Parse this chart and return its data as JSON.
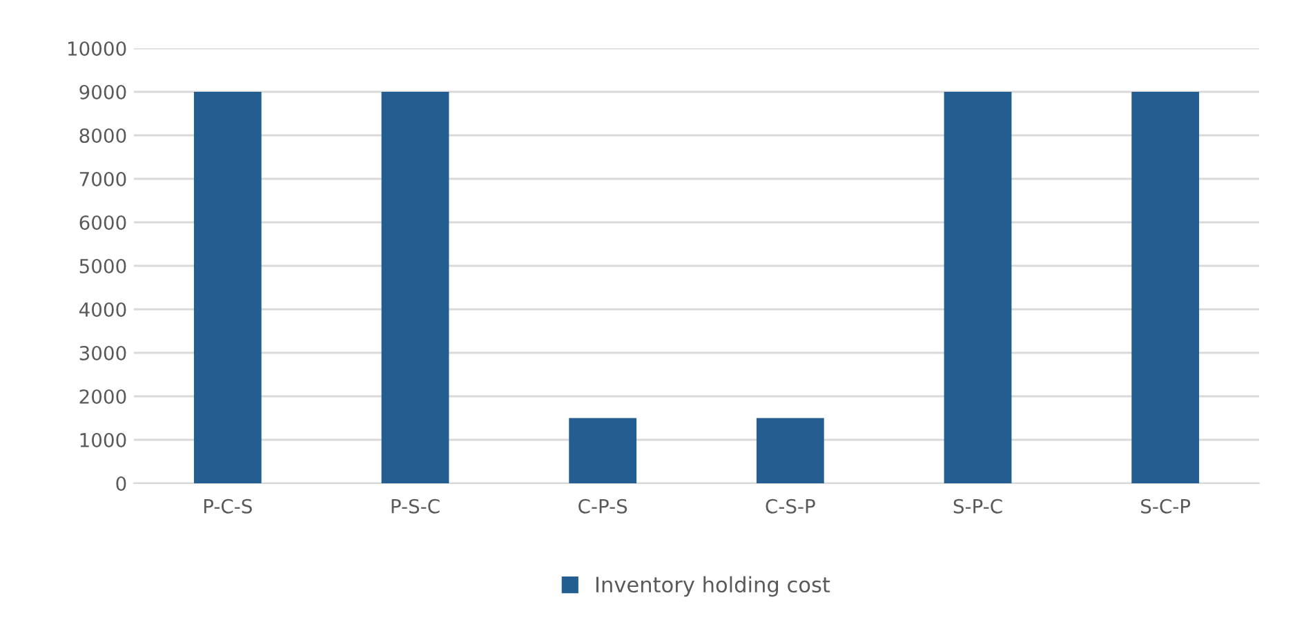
{
  "chart_data": {
    "type": "bar",
    "categories": [
      "P-C-S",
      "P-S-C",
      "C-P-S",
      "C-S-P",
      "S-P-C",
      "S-C-P"
    ],
    "series": [
      {
        "name": "Inventory holding cost",
        "color": "#245e91",
        "values": [
          9000,
          9000,
          1500,
          1500,
          9000,
          9000
        ]
      }
    ],
    "ylim": [
      0,
      10000
    ],
    "yticks": [
      0,
      1000,
      2000,
      3000,
      4000,
      5000,
      6000,
      7000,
      8000,
      9000,
      10000
    ],
    "grid": "y",
    "legend": "bottom"
  }
}
